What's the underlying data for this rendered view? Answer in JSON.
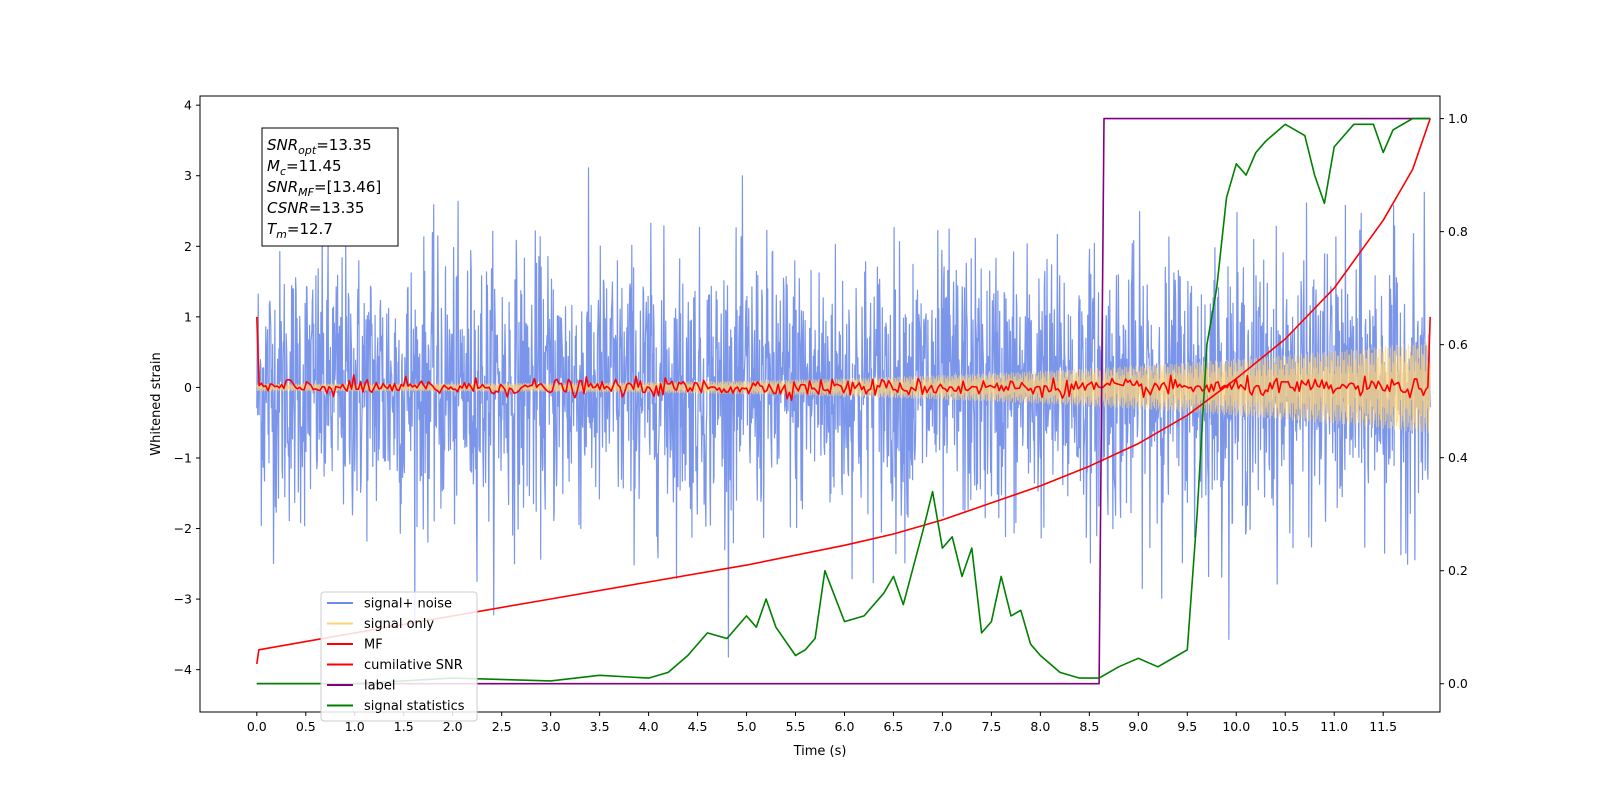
{
  "chart_data": {
    "type": "line",
    "xlabel": "Time (s)",
    "ylabel": "Whitened strain",
    "xlim": [
      -0.58,
      12.08
    ],
    "ylim": [
      -4.6,
      4.13
    ],
    "ylim_right": [
      -0.05,
      1.04
    ],
    "x_ticks": [
      "0.0",
      "0.5",
      "1.0",
      "1.5",
      "2.0",
      "2.5",
      "3.0",
      "3.5",
      "4.0",
      "4.5",
      "5.0",
      "5.5",
      "6.0",
      "6.5",
      "7.0",
      "7.5",
      "8.0",
      "8.5",
      "9.0",
      "9.5",
      "10.0",
      "10.5",
      "11.0",
      "11.5"
    ],
    "y_ticks_left": [
      "4",
      "3",
      "2",
      "1",
      "0",
      "−1",
      "−2",
      "−3",
      "−4"
    ],
    "y_ticks_right": [
      "1.0",
      "0.8",
      "0.6",
      "0.4",
      "0.2",
      "0.0"
    ],
    "legend": {
      "position": "lower-left",
      "entries": [
        {
          "label": "signal+ noise",
          "color": "#6c8ae8"
        },
        {
          "label": "signal only",
          "color": "#ffd37a"
        },
        {
          "label": "MF",
          "color": "#ff0000"
        },
        {
          "label": "cumilative SNR",
          "color": "#ff0000"
        },
        {
          "label": "label",
          "color": "#800080"
        },
        {
          "label": "signal statistics",
          "color": "#008000"
        }
      ]
    },
    "annotation": {
      "lines": [
        {
          "sym": "SNR",
          "sub": "opt",
          "value": "=13.35"
        },
        {
          "sym": "M",
          "sub": "c",
          "value": "=11.45"
        },
        {
          "sym": "SNR",
          "sub": "MF",
          "value": "=[13.46]"
        },
        {
          "sym": "CSNR",
          "sub": "",
          "value": "=13.35"
        },
        {
          "sym": "T",
          "sub": "m",
          "value": "=12.7"
        }
      ]
    },
    "series": [
      {
        "name": "signal+ noise",
        "axis": "left",
        "kind": "noise",
        "x_range": [
          0,
          11.98
        ],
        "std": 0.95,
        "color": "#6c8ae8"
      },
      {
        "name": "signal only",
        "axis": "left",
        "kind": "chirp",
        "x_range": [
          0,
          11.98
        ],
        "amp_start": 0.05,
        "amp_end": 0.65,
        "color": "#ffd37a"
      },
      {
        "name": "MF",
        "axis": "left",
        "kind": "mf",
        "x_range": [
          0,
          11.98
        ],
        "start": 1.0,
        "end": 1.0,
        "baseline": 0.0,
        "noise_std": 0.06,
        "color": "#ff0000"
      },
      {
        "name": "cumilative SNR",
        "axis": "right",
        "x": [
          0,
          0.02,
          1,
          2,
          3,
          4,
          5,
          6,
          6.5,
          7,
          7.5,
          8,
          8.5,
          9,
          9.5,
          10,
          10.5,
          11,
          11.5,
          11.8,
          11.98
        ],
        "y": [
          0.035,
          0.06,
          0.09,
          0.12,
          0.15,
          0.18,
          0.21,
          0.245,
          0.265,
          0.29,
          0.32,
          0.35,
          0.385,
          0.425,
          0.475,
          0.54,
          0.61,
          0.7,
          0.82,
          0.91,
          1.0
        ],
        "color": "#ff0000"
      },
      {
        "name": "label",
        "axis": "right",
        "x": [
          0,
          8.6,
          8.65,
          11.98
        ],
        "y": [
          0,
          0,
          1,
          1
        ],
        "color": "#800080"
      },
      {
        "name": "signal statistics",
        "axis": "right",
        "x": [
          0,
          1,
          2,
          3,
          3.5,
          4,
          4.2,
          4.4,
          4.6,
          4.8,
          5.0,
          5.1,
          5.2,
          5.3,
          5.5,
          5.6,
          5.7,
          5.8,
          6.0,
          6.2,
          6.4,
          6.5,
          6.6,
          6.8,
          6.9,
          7.0,
          7.1,
          7.2,
          7.3,
          7.4,
          7.5,
          7.6,
          7.7,
          7.8,
          7.9,
          8.0,
          8.2,
          8.4,
          8.6,
          8.8,
          9.0,
          9.2,
          9.4,
          9.5,
          9.6,
          9.7,
          9.8,
          9.9,
          10.0,
          10.1,
          10.2,
          10.3,
          10.5,
          10.7,
          10.8,
          10.9,
          11.0,
          11.2,
          11.4,
          11.5,
          11.6,
          11.8,
          11.98
        ],
        "y": [
          0.0,
          0.0,
          0.01,
          0.005,
          0.015,
          0.01,
          0.02,
          0.05,
          0.09,
          0.08,
          0.12,
          0.1,
          0.15,
          0.1,
          0.05,
          0.06,
          0.08,
          0.2,
          0.11,
          0.12,
          0.16,
          0.19,
          0.14,
          0.27,
          0.34,
          0.24,
          0.26,
          0.19,
          0.24,
          0.09,
          0.11,
          0.19,
          0.12,
          0.13,
          0.07,
          0.05,
          0.02,
          0.01,
          0.01,
          0.03,
          0.045,
          0.03,
          0.05,
          0.06,
          0.3,
          0.6,
          0.7,
          0.86,
          0.92,
          0.9,
          0.94,
          0.96,
          0.99,
          0.97,
          0.9,
          0.85,
          0.95,
          0.99,
          0.99,
          0.94,
          0.98,
          1.0,
          1.0
        ],
        "color": "#008000"
      }
    ]
  }
}
